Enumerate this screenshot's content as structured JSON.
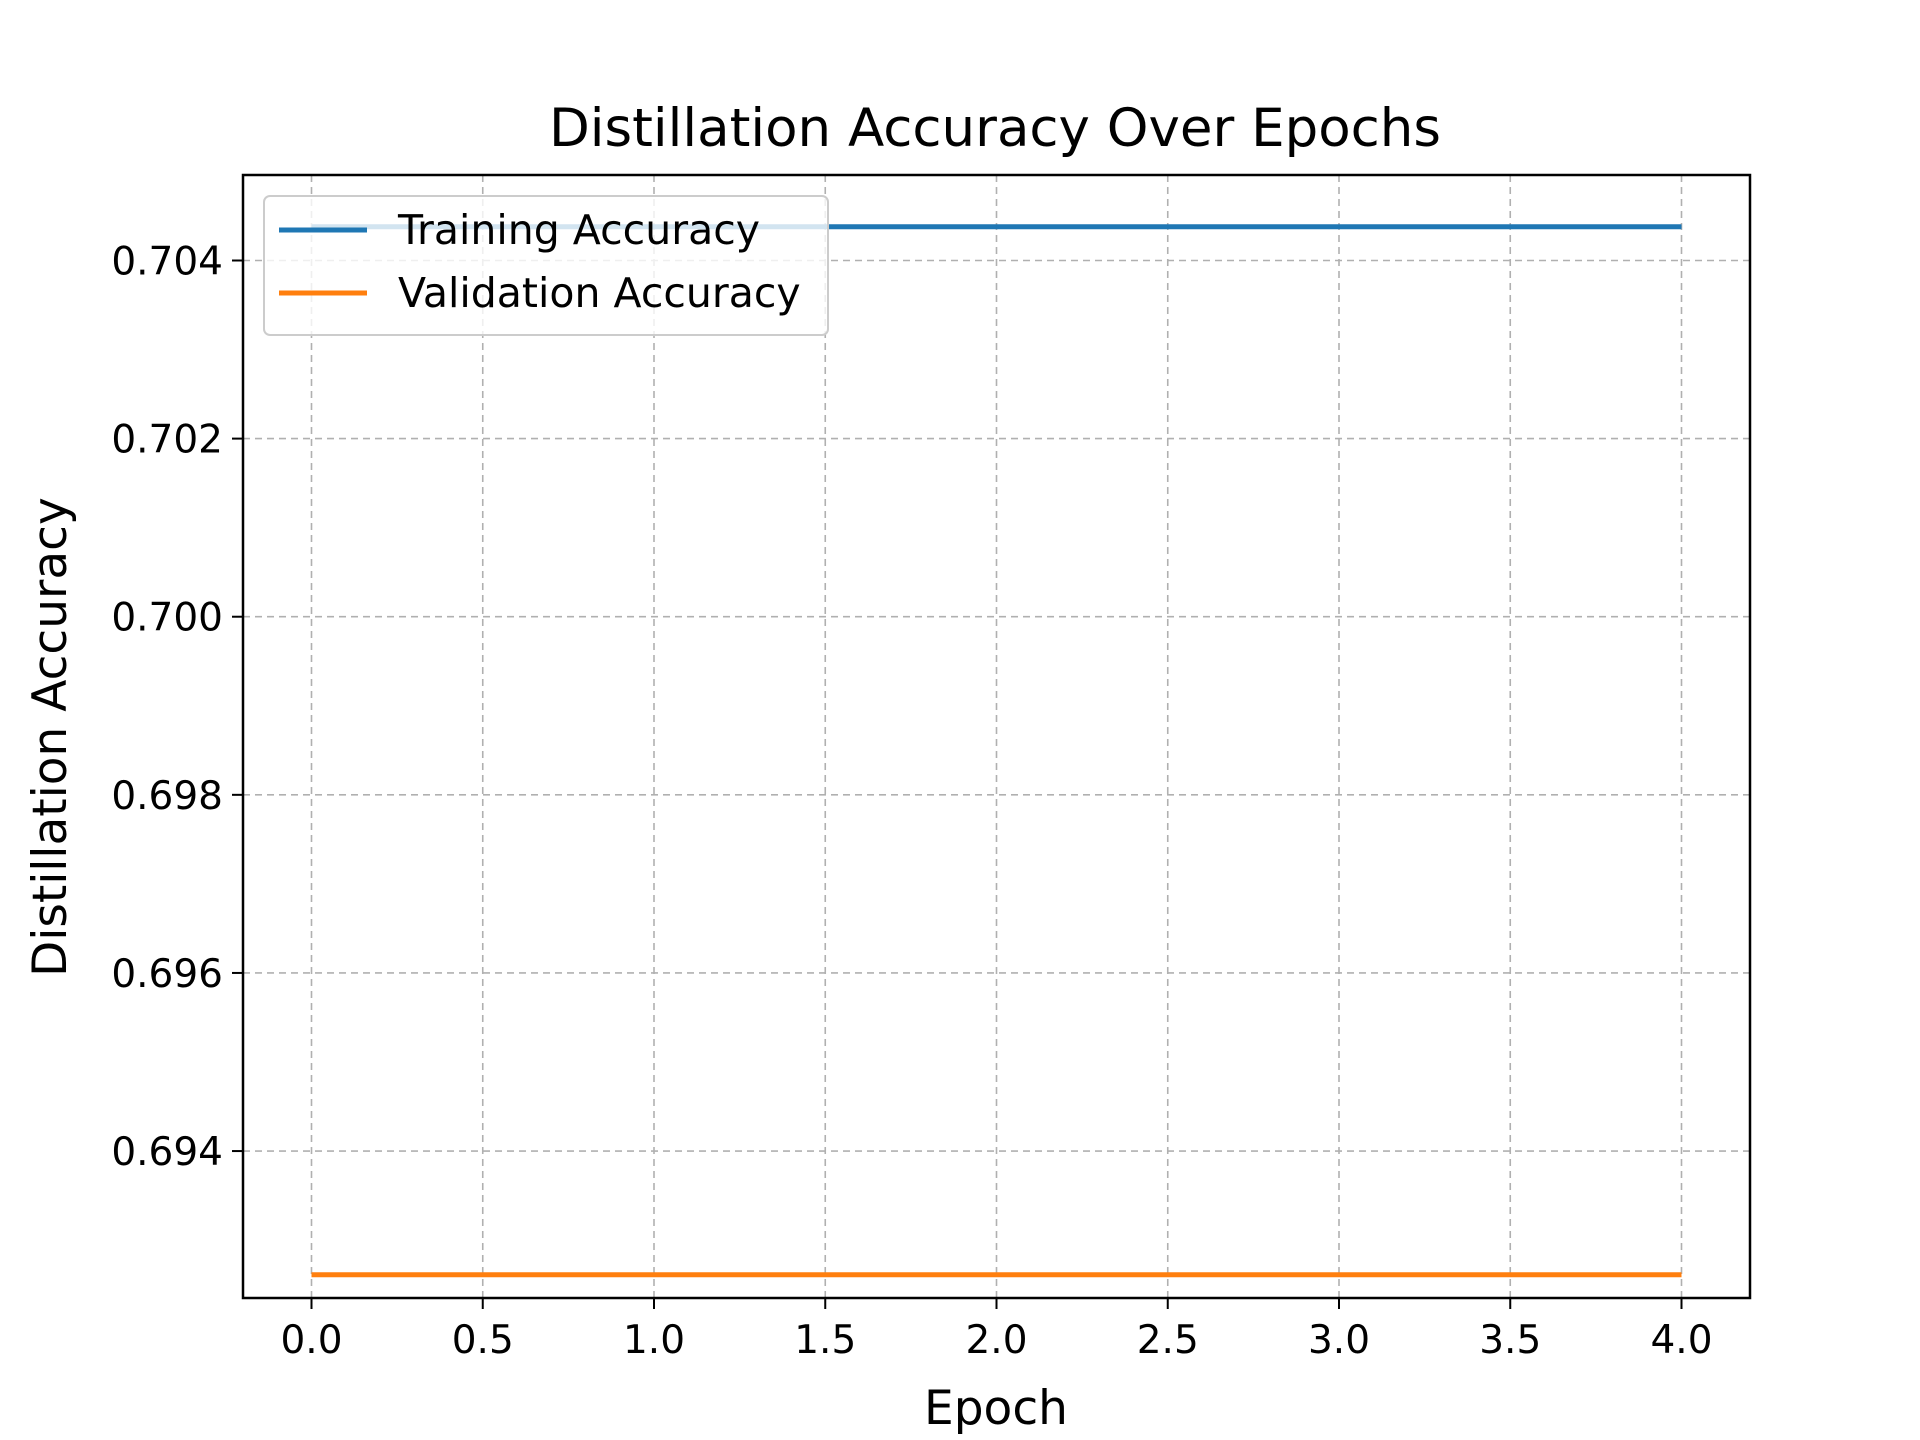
{
  "chart_data": {
    "type": "line",
    "title": "Distillation Accuracy Over Epochs",
    "xlabel": "Epoch",
    "ylabel": "Distillation Accuracy",
    "xlim": [
      -0.2,
      4.2
    ],
    "ylim": [
      0.69235,
      0.70496
    ],
    "xticks": [
      0.0,
      0.5,
      1.0,
      1.5,
      2.0,
      2.5,
      3.0,
      3.5,
      4.0
    ],
    "xtick_labels": [
      "0.0",
      "0.5",
      "1.0",
      "1.5",
      "2.0",
      "2.5",
      "3.0",
      "3.5",
      "4.0"
    ],
    "yticks": [
      0.694,
      0.696,
      0.698,
      0.7,
      0.702,
      0.704
    ],
    "ytick_labels": [
      "0.694",
      "0.696",
      "0.698",
      "0.700",
      "0.702",
      "0.704"
    ],
    "grid": true,
    "legend_position": "top-left",
    "x": [
      0,
      1,
      2,
      3,
      4
    ],
    "series": [
      {
        "name": "Training Accuracy",
        "color": "#1f77b4",
        "values": [
          0.70438,
          0.70438,
          0.70438,
          0.70438,
          0.70438
        ]
      },
      {
        "name": "Validation Accuracy",
        "color": "#ff7f0e",
        "values": [
          0.69261,
          0.69261,
          0.69261,
          0.69261,
          0.69261
        ]
      }
    ]
  }
}
